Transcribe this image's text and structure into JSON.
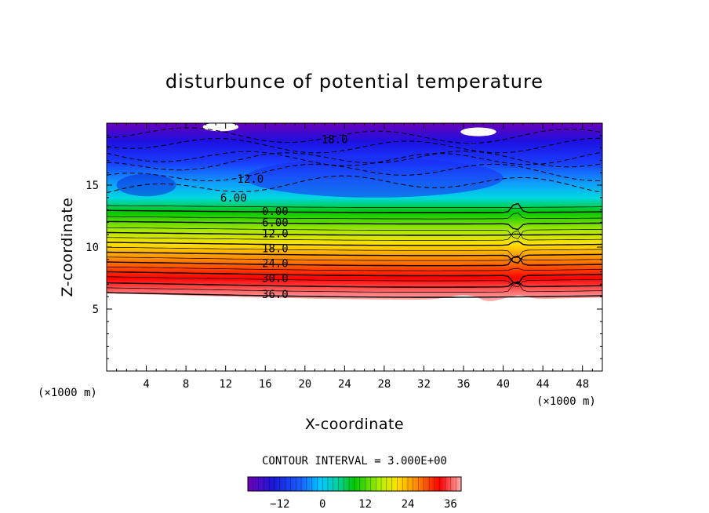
{
  "chart_data": {
    "type": "heatmap",
    "title": "disturbunce of potential temperature",
    "xlabel": "X-coordinate",
    "ylabel": "Z-coordinate",
    "x_unit": "(×1000 m)",
    "z_unit": "(×1000 m)",
    "xlim": [
      0,
      50
    ],
    "ylim": [
      0,
      20
    ],
    "x_ticks": [
      "4",
      "8",
      "12",
      "16",
      "20",
      "24",
      "28",
      "32",
      "36",
      "40",
      "44",
      "48"
    ],
    "y_ticks": [
      "5",
      "10",
      "15"
    ],
    "contour_interval_text": "CONTOUR INTERVAL = 3.000E+00",
    "contour_labels": [
      {
        "text": "18.0",
        "x": 23.0,
        "z": 18.7
      },
      {
        "text": "12.0",
        "x": 14.5,
        "z": 15.5
      },
      {
        "text": "6.00",
        "x": 12.8,
        "z": 14.0
      },
      {
        "text": "0.00",
        "x": 17.0,
        "z": 12.9
      },
      {
        "text": "6.00",
        "x": 17.0,
        "z": 12.0
      },
      {
        "text": "12.0",
        "x": 17.0,
        "z": 11.1
      },
      {
        "text": "18.0",
        "x": 17.0,
        "z": 9.9
      },
      {
        "text": "24.0",
        "x": 17.0,
        "z": 8.7
      },
      {
        "text": "30.0",
        "x": 17.0,
        "z": 7.5
      },
      {
        "text": "36.0",
        "x": 17.0,
        "z": 6.2
      }
    ],
    "colorbar": {
      "vmin": -21,
      "vmax": 39,
      "ticks": [
        "-12",
        "0",
        "12",
        "24",
        "36"
      ],
      "tick_values": [
        -12,
        0,
        12,
        24,
        36
      ]
    },
    "colors": {
      "purple": "#7a00c8",
      "blue": "#1020ff",
      "cyan": "#00c8ff",
      "green": "#00d000",
      "yellow": "#f0f000",
      "orange": "#ff8000",
      "red": "#ff0000",
      "pink": "#ffb0b0"
    }
  }
}
